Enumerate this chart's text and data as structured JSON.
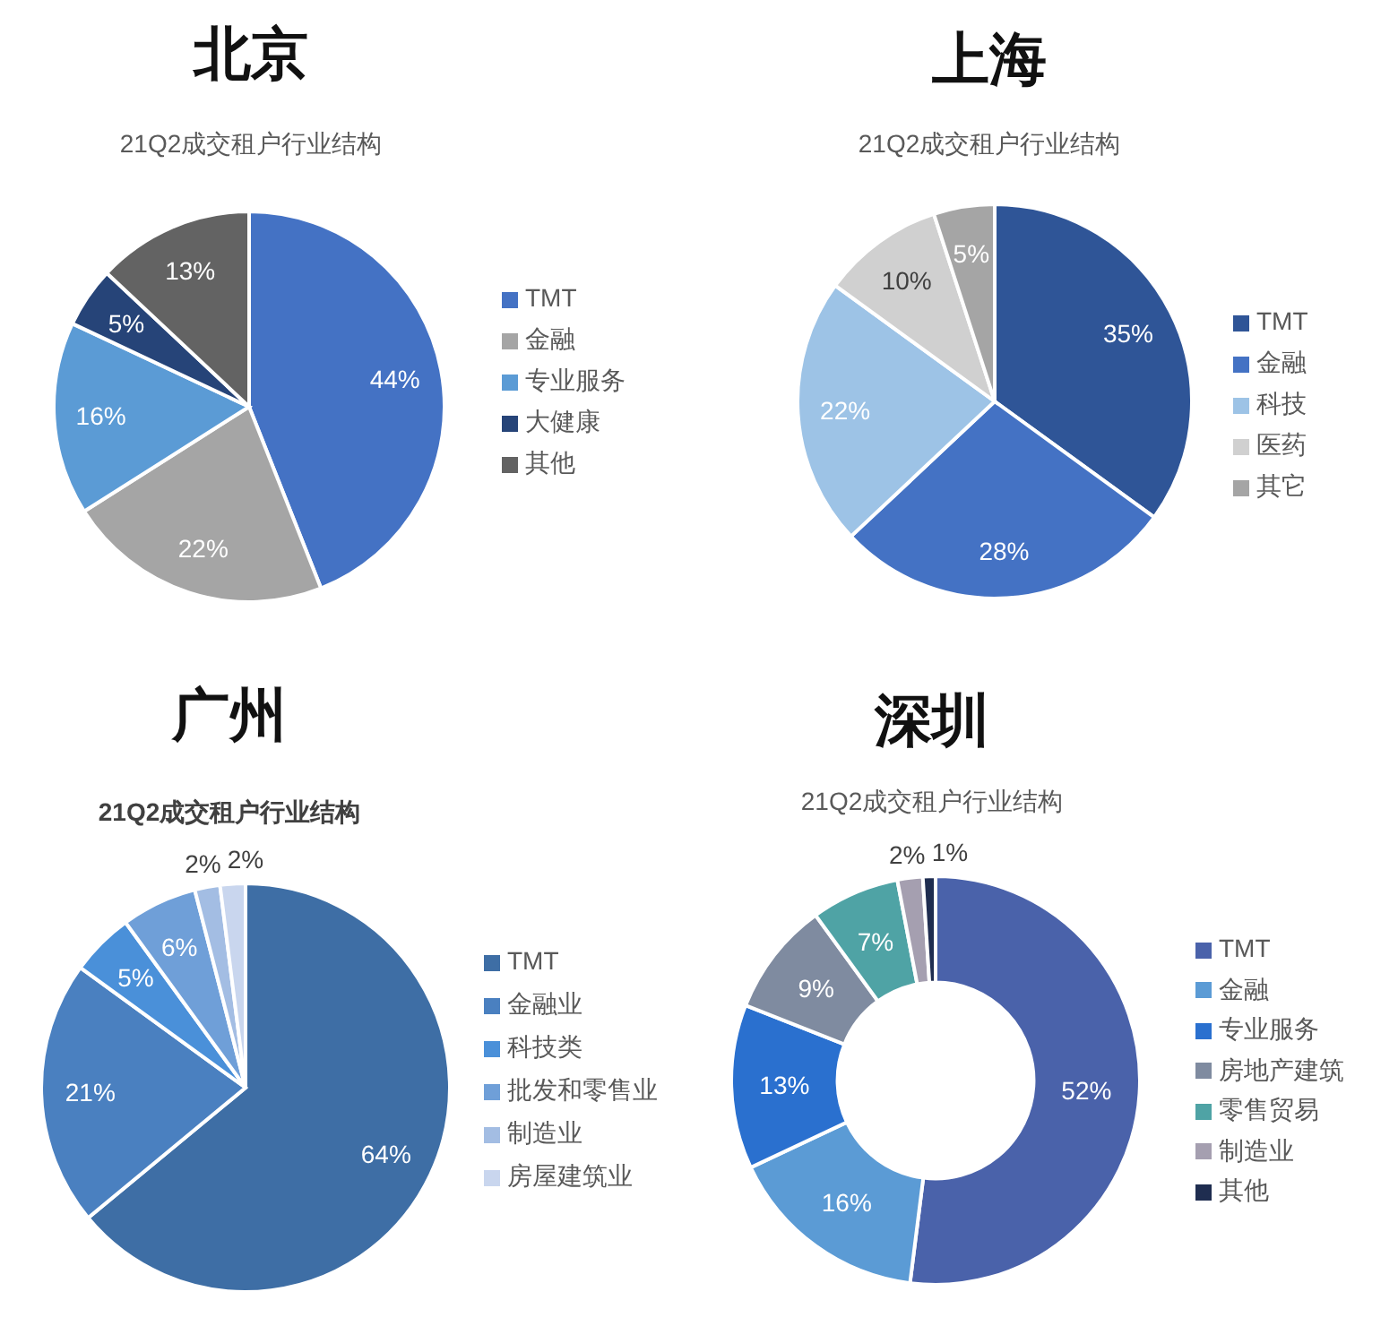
{
  "chart_data": [
    {
      "type": "pie",
      "title": "北京",
      "subtitle": "21Q2成交租户行业结构",
      "categories": [
        "TMT",
        "金融",
        "专业服务",
        "大健康",
        "其他"
      ],
      "values": [
        44,
        22,
        16,
        5,
        13
      ],
      "colors": [
        "#4472c4",
        "#a5a5a5",
        "#5b9bd5",
        "#264478",
        "#636363"
      ],
      "value_labels": [
        "44%",
        "22%",
        "16%",
        "5%",
        "13%"
      ],
      "legend": "right"
    },
    {
      "type": "pie",
      "title": "上海",
      "subtitle": "21Q2成交租户行业结构",
      "categories": [
        "TMT",
        "金融",
        "科技",
        "医药",
        "其它"
      ],
      "values": [
        35,
        28,
        22,
        10,
        5
      ],
      "colors": [
        "#2f5597",
        "#4472c4",
        "#9dc3e6",
        "#d0d0d0",
        "#a5a5a5"
      ],
      "value_labels": [
        "35%",
        "28%",
        "22%",
        "10%",
        "5%"
      ],
      "legend": "right"
    },
    {
      "type": "pie",
      "title": "广州",
      "subtitle": "21Q2成交租户行业结构",
      "categories": [
        "TMT",
        "金融业",
        "科技类",
        "批发和零售业",
        "制造业",
        "房屋建筑业"
      ],
      "values": [
        64,
        21,
        5,
        6,
        2,
        2
      ],
      "colors": [
        "#3e6ea5",
        "#4a80c0",
        "#4a90d9",
        "#6f9fd8",
        "#a3bde3",
        "#c9d6ee"
      ],
      "value_labels": [
        "64%",
        "21%",
        "5%",
        "6%",
        "2%",
        "2%"
      ],
      "legend": "right"
    },
    {
      "type": "donut",
      "title": "深圳",
      "subtitle": "21Q2成交租户行业结构",
      "categories": [
        "TMT",
        "金融",
        "专业服务",
        "房地产建筑",
        "零售贸易",
        "制造业",
        "其他"
      ],
      "values": [
        52,
        16,
        13,
        9,
        7,
        2,
        1
      ],
      "colors": [
        "#4a62aa",
        "#5b9bd5",
        "#2a70cf",
        "#7f8ba0",
        "#4fa3a5",
        "#a59fb0",
        "#1f2d50"
      ],
      "value_labels": [
        "52%",
        "16%",
        "13%",
        "9%",
        "7%",
        "2%",
        "1%"
      ],
      "legend": "right"
    }
  ]
}
